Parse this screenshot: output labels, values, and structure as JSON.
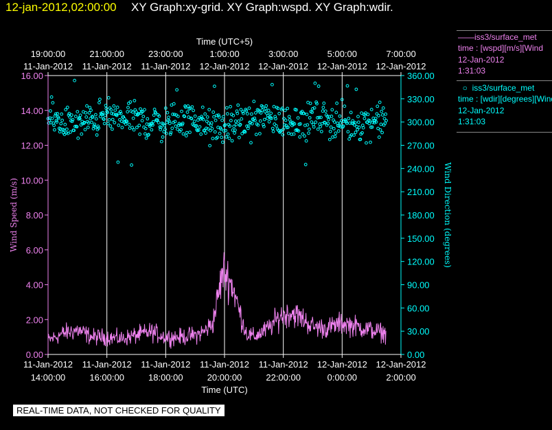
{
  "header": {
    "date_time": "12-jan-2012,02:00:00",
    "title": "XY Graph:xy-grid.  XY Graph:wspd.  XY Graph:wdir."
  },
  "legend": {
    "wspd": {
      "name": "iss3/surface_met",
      "line1": "time : [wspd][m/s][Wind",
      "line2": "12-Jan-2012",
      "line3": "1:31:03"
    },
    "wdir": {
      "name": "iss3/surface_met",
      "line1": "time : [wdir][degrees][Wind",
      "line2": "12-Jan-2012",
      "line3": "1:31:03"
    }
  },
  "footer": {
    "warning": "REAL-TIME DATA, NOT CHECKED FOR QUALITY"
  },
  "colors": {
    "wspd": "#ee82ee",
    "wdir": "#00ffff",
    "grid": "#ffffff",
    "date": "#ffff00"
  },
  "chart_data": {
    "type": "line",
    "title": "",
    "x_bottom": {
      "label": "Time (UTC)",
      "ticks": [
        {
          "time": "14:00:00",
          "date": "11-Jan-2012",
          "x": 0
        },
        {
          "time": "16:00:00",
          "date": "11-Jan-2012",
          "x": 2
        },
        {
          "time": "18:00:00",
          "date": "11-Jan-2012",
          "x": 4
        },
        {
          "time": "20:00:00",
          "date": "11-Jan-2012",
          "x": 6
        },
        {
          "time": "22:00:00",
          "date": "11-Jan-2012",
          "x": 8
        },
        {
          "time": "0:00:00",
          "date": "12-Jan-2012",
          "x": 10
        },
        {
          "time": "2:00:00",
          "date": "12-Jan-2012",
          "x": 12
        }
      ]
    },
    "x_top": {
      "label": "Time (UTC+5)",
      "ticks": [
        {
          "time": "19:00:00",
          "date": "11-Jan-2012",
          "x": 0
        },
        {
          "time": "21:00:00",
          "date": "11-Jan-2012",
          "x": 2
        },
        {
          "time": "23:00:00",
          "date": "11-Jan-2012",
          "x": 4
        },
        {
          "time": "1:00:00",
          "date": "12-Jan-2012",
          "x": 6
        },
        {
          "time": "3:00:00",
          "date": "12-Jan-2012",
          "x": 8
        },
        {
          "time": "5:00:00",
          "date": "12-Jan-2012",
          "x": 10
        },
        {
          "time": "7:00:00",
          "date": "12-Jan-2012",
          "x": 12
        }
      ]
    },
    "xlim": [
      0,
      12
    ],
    "y_left": {
      "label": "Wind Speed (m/s)",
      "ylim": [
        0,
        16
      ],
      "ticks": [
        "0.00",
        "2.00",
        "4.00",
        "6.00",
        "8.00",
        "10.00",
        "12.00",
        "14.00",
        "16.00"
      ]
    },
    "y_right": {
      "label": "Wind Direction (degrees)",
      "ylim": [
        0,
        360
      ],
      "ticks": [
        "0.00",
        "30.00",
        "60.00",
        "90.00",
        "120.00",
        "150.00",
        "180.00",
        "210.00",
        "240.00",
        "270.00",
        "300.00",
        "330.00",
        "360.00"
      ]
    },
    "grid": "vertical",
    "series": [
      {
        "name": "iss3/surface_met",
        "type": "line",
        "axis": "left",
        "x": [
          0,
          0.5,
          1,
          1.5,
          2,
          2.5,
          3,
          3.5,
          4,
          4.5,
          5,
          5.3,
          5.6,
          5.8,
          5.95,
          6.1,
          6.3,
          6.5,
          6.75,
          7,
          7.5,
          7.9,
          8.3,
          8.7,
          9,
          9.5,
          10,
          10.5,
          11,
          11.5,
          11.5
        ],
        "values": [
          0.8,
          1.2,
          1.4,
          1.0,
          1.0,
          0.9,
          1.1,
          1.3,
          1.0,
          1.0,
          1.1,
          1.3,
          1.8,
          3.5,
          4.8,
          4.5,
          3.8,
          2.5,
          1.2,
          1.0,
          1.5,
          2.2,
          2.4,
          2.0,
          1.6,
          1.5,
          1.8,
          1.6,
          1.4,
          1.2,
          1.2
        ]
      },
      {
        "name": "iss3/surface_met",
        "type": "scatter",
        "axis": "right",
        "x": [
          0,
          0.5,
          1,
          1.5,
          2,
          2.5,
          3,
          3.5,
          4,
          4.5,
          5,
          5.5,
          6,
          6.5,
          7,
          7.5,
          8,
          8.5,
          9,
          9.5,
          10,
          10.5,
          11,
          11.5
        ],
        "values": [
          305,
          300,
          296,
          303,
          308,
          306,
          303,
          300,
          298,
          302,
          304,
          292,
          294,
          298,
          304,
          306,
          300,
          302,
          305,
          304,
          300,
          298,
          302,
          302
        ]
      }
    ]
  }
}
